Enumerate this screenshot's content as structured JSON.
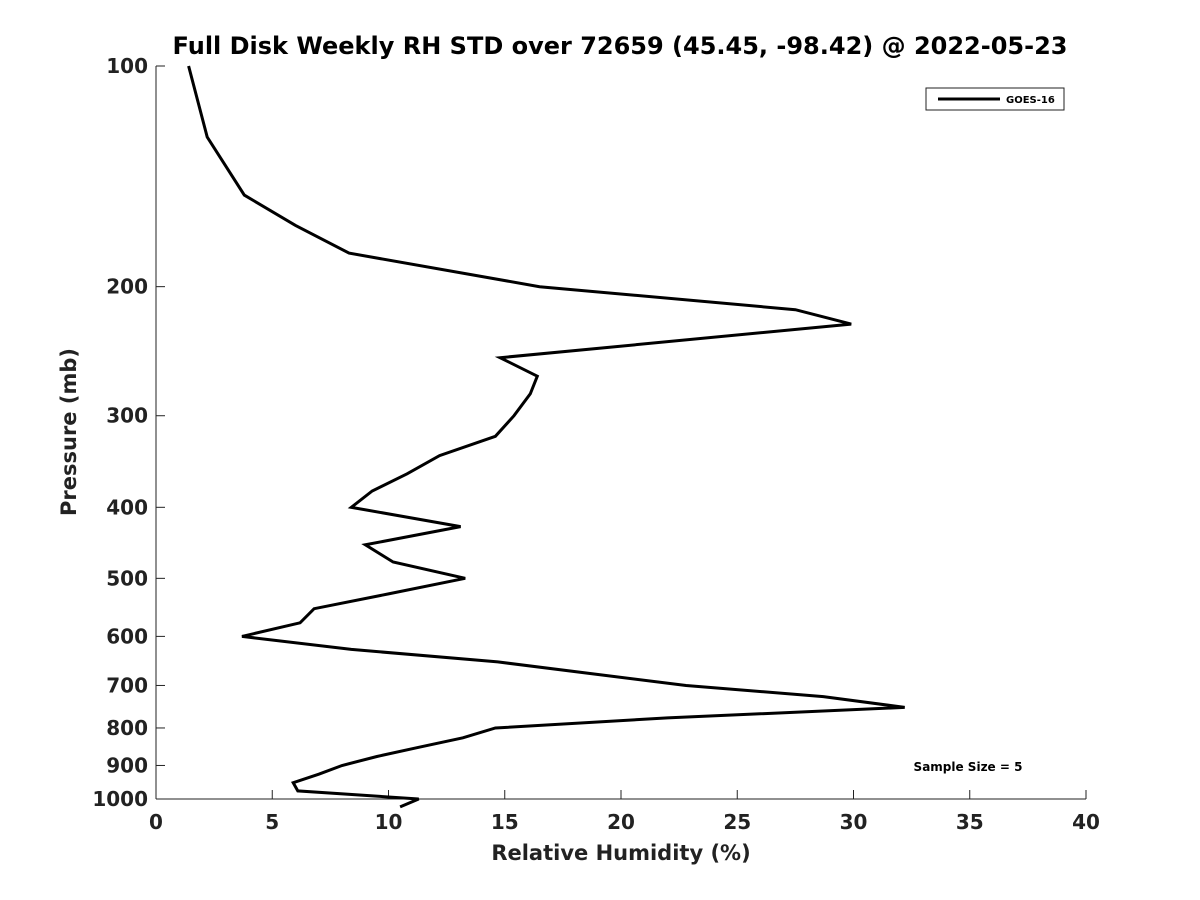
{
  "chart_data": {
    "type": "line",
    "title": "Full Disk Weekly RH STD over 72659 (45.45, -98.42) @ 2022-05-23",
    "xlabel": "Relative Humidity (%)",
    "ylabel": "Pressure (mb)",
    "xlim": [
      0,
      40
    ],
    "ylim": [
      100,
      1000
    ],
    "yscale": "log",
    "y_reversed": true,
    "x_ticks": [
      0,
      5,
      10,
      15,
      20,
      25,
      30,
      35,
      40
    ],
    "y_ticks": [
      100,
      200,
      300,
      400,
      500,
      600,
      700,
      800,
      900,
      1000
    ],
    "grid": false,
    "legend_position": "top-right",
    "series": [
      {
        "name": "GOES-16",
        "color": "#000000",
        "points": [
          [
            1.4,
            100
          ],
          [
            2.2,
            125
          ],
          [
            3.8,
            150
          ],
          [
            6.0,
            165
          ],
          [
            8.3,
            180
          ],
          [
            16.5,
            200
          ],
          [
            27.5,
            215
          ],
          [
            29.9,
            225
          ],
          [
            14.8,
            250
          ],
          [
            16.4,
            265
          ],
          [
            16.1,
            280
          ],
          [
            15.4,
            300
          ],
          [
            14.6,
            320
          ],
          [
            12.2,
            340
          ],
          [
            10.8,
            360
          ],
          [
            9.3,
            380
          ],
          [
            8.4,
            400
          ],
          [
            13.1,
            425
          ],
          [
            9.0,
            450
          ],
          [
            10.2,
            475
          ],
          [
            13.3,
            500
          ],
          [
            10.0,
            525
          ],
          [
            6.8,
            550
          ],
          [
            6.2,
            575
          ],
          [
            3.7,
            600
          ],
          [
            8.4,
            625
          ],
          [
            14.7,
            650
          ],
          [
            18.8,
            675
          ],
          [
            22.8,
            700
          ],
          [
            28.7,
            725
          ],
          [
            32.2,
            750
          ],
          [
            22.0,
            775
          ],
          [
            14.6,
            800
          ],
          [
            13.2,
            825
          ],
          [
            11.3,
            850
          ],
          [
            9.5,
            875
          ],
          [
            8.0,
            900
          ],
          [
            7.0,
            925
          ],
          [
            5.9,
            950
          ],
          [
            6.1,
            975
          ],
          [
            11.3,
            1000
          ],
          [
            10.5,
            1025
          ]
        ]
      }
    ],
    "annotations": [
      {
        "text": "Sample Size = 5",
        "position": "bottom-right"
      }
    ]
  }
}
